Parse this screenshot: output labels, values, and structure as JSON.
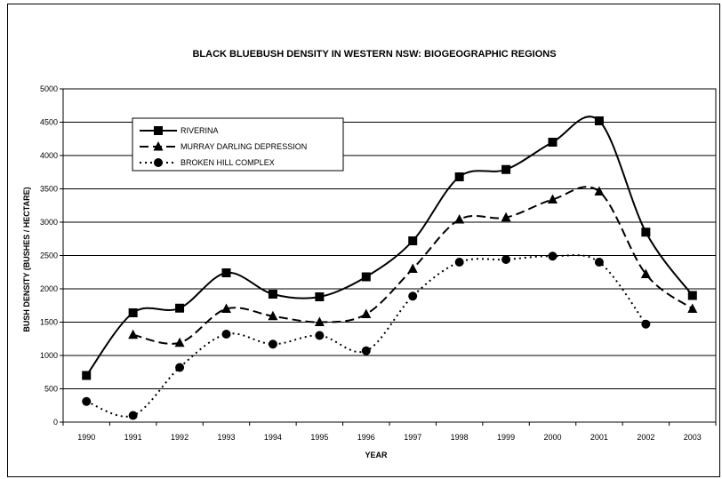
{
  "chart_data": {
    "type": "line",
    "title": "BLACK BLUEBUSH DENSITY IN WESTERN NSW: BIOGEOGRAPHIC REGIONS",
    "xlabel": "YEAR",
    "ylabel": "BUSH DENSITY (BUSHES / HECTARE)",
    "categories": [
      "1990",
      "1991",
      "1992",
      "1993",
      "1994",
      "1995",
      "1996",
      "1997",
      "1998",
      "1999",
      "2000",
      "2001",
      "2002",
      "2003"
    ],
    "ylim": [
      0,
      5000
    ],
    "yticks": [
      "0",
      "500",
      "1000",
      "1500",
      "2000",
      "2500",
      "3000",
      "3500",
      "4000",
      "4500",
      "5000"
    ],
    "grid": true,
    "legend_position": "top-left",
    "series": [
      {
        "name": "RIVERINA",
        "marker": "square",
        "line": "solid",
        "values": [
          700,
          1640,
          1710,
          2240,
          1920,
          1880,
          2180,
          2720,
          3680,
          3790,
          4200,
          4520,
          2850,
          1900
        ]
      },
      {
        "name": "MURRAY DARLING DEPRESSION",
        "marker": "triangle",
        "line": "dashed",
        "values": [
          null,
          1310,
          1190,
          1700,
          1590,
          1500,
          1620,
          2300,
          3040,
          3070,
          3340,
          3460,
          2220,
          1700
        ]
      },
      {
        "name": "BROKEN HILL COMPLEX",
        "marker": "circle",
        "line": "dotted",
        "values": [
          310,
          100,
          820,
          1320,
          1170,
          1300,
          1070,
          1890,
          2400,
          2440,
          2490,
          2400,
          1470,
          null
        ]
      }
    ]
  }
}
